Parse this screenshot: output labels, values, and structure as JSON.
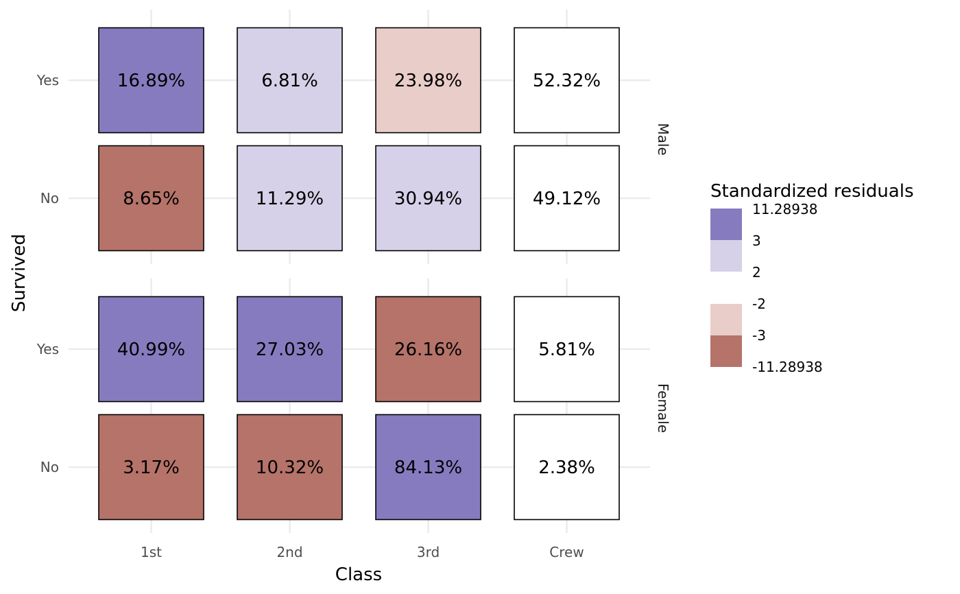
{
  "chart_data": {
    "type": "heatmap",
    "xlabel": "Class",
    "ylabel": "Survived",
    "x_categories": [
      "1st",
      "2nd",
      "3rd",
      "Crew"
    ],
    "y_categories": [
      "Yes",
      "No"
    ],
    "facets": [
      {
        "name": "Male",
        "rows": [
          {
            "survived": "Yes",
            "values": [
              "16.89%",
              "6.81%",
              "23.98%",
              "52.32%"
            ],
            "residual_bins": [
              "high",
              "mid_pos",
              "mid_neg",
              "neutral"
            ]
          },
          {
            "survived": "No",
            "values": [
              "8.65%",
              "11.29%",
              "30.94%",
              "49.12%"
            ],
            "residual_bins": [
              "low",
              "mid_pos",
              "mid_pos",
              "neutral"
            ]
          }
        ]
      },
      {
        "name": "Female",
        "rows": [
          {
            "survived": "Yes",
            "values": [
              "40.99%",
              "27.03%",
              "26.16%",
              "5.81%"
            ],
            "residual_bins": [
              "high",
              "high",
              "low",
              "neutral"
            ]
          },
          {
            "survived": "No",
            "values": [
              "3.17%",
              "10.32%",
              "84.13%",
              "2.38%"
            ],
            "residual_bins": [
              "low",
              "low",
              "high",
              "neutral"
            ]
          }
        ]
      }
    ],
    "legend": {
      "title": "Standardized residuals",
      "position": "right",
      "labels": [
        "11.28938",
        "3",
        "2",
        "-2",
        "-3",
        "-11.28938"
      ],
      "bins": [
        {
          "key": "high",
          "color": "#877bbf"
        },
        {
          "key": "mid_pos",
          "color": "#d6d1e8"
        },
        {
          "key": "mid_neg",
          "color": "#e9cdc8"
        },
        {
          "key": "low",
          "color": "#b57369"
        }
      ]
    },
    "neutral_color": "#ffffff",
    "grid": true
  }
}
